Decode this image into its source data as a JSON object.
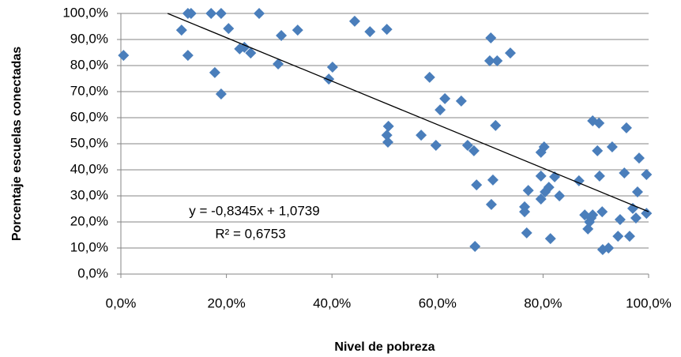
{
  "chart_data": {
    "type": "scatter",
    "x_label": "Nivel de pobreza",
    "y_label": "Porcentaje escuelas conectadas",
    "color": "#4a7ebb",
    "x": [
      0.005,
      0.115,
      0.127,
      0.133,
      0.127,
      0.171,
      0.19,
      0.178,
      0.19,
      0.204,
      0.225,
      0.234,
      0.246,
      0.262,
      0.298,
      0.304,
      0.335,
      0.394,
      0.401,
      0.443,
      0.472,
      0.504,
      0.504,
      0.506,
      0.507,
      0.569,
      0.597,
      0.585,
      0.605,
      0.614,
      0.645,
      0.657,
      0.669,
      0.674,
      0.671,
      0.701,
      0.699,
      0.713,
      0.738,
      0.71,
      0.705,
      0.702,
      0.769,
      0.765,
      0.765,
      0.772,
      0.814,
      0.796,
      0.796,
      0.796,
      0.802,
      0.804,
      0.811,
      0.822,
      0.831,
      0.868,
      0.879,
      0.885,
      0.888,
      0.891,
      0.894,
      0.894,
      0.906,
      0.903,
      0.907,
      0.912,
      0.913,
      0.924,
      0.931,
      0.942,
      0.946,
      0.954,
      0.958,
      0.964,
      0.97,
      0.976,
      0.979,
      0.982,
      0.996,
      0.996
    ],
    "values": [
      0.839,
      0.936,
      1.0,
      1.0,
      0.839,
      1.0,
      1.0,
      0.773,
      0.691,
      0.942,
      0.864,
      0.87,
      0.848,
      1.0,
      0.806,
      0.915,
      0.936,
      0.748,
      0.794,
      0.97,
      0.93,
      0.939,
      0.533,
      0.506,
      0.567,
      0.533,
      0.494,
      0.755,
      0.63,
      0.673,
      0.664,
      0.494,
      0.473,
      0.342,
      0.106,
      0.906,
      0.818,
      0.818,
      0.848,
      0.57,
      0.361,
      0.267,
      0.158,
      0.258,
      0.239,
      0.321,
      0.136,
      0.467,
      0.376,
      0.288,
      0.488,
      0.315,
      0.333,
      0.373,
      0.3,
      0.358,
      0.227,
      0.173,
      0.2,
      0.215,
      0.227,
      0.588,
      0.579,
      0.473,
      0.376,
      0.239,
      0.094,
      0.1,
      0.488,
      0.145,
      0.209,
      0.388,
      0.561,
      0.145,
      0.252,
      0.215,
      0.315,
      0.445,
      0.382,
      0.233
    ],
    "trendline": {
      "slope": -0.8345,
      "intercept": 1.0739,
      "equation": "y = -0,8345x + 1,0739",
      "r2": "R² = 0,6753"
    },
    "xlim": [
      0,
      1
    ],
    "ylim": [
      0,
      1
    ],
    "xticks": [
      {
        "value": 0,
        "label": "0,0%"
      },
      {
        "value": 0.2,
        "label": "20,0%"
      },
      {
        "value": 0.4,
        "label": "40,0%"
      },
      {
        "value": 0.6,
        "label": "60,0%"
      },
      {
        "value": 0.8,
        "label": "80,0%"
      },
      {
        "value": 1,
        "label": "100,0%"
      }
    ],
    "yticks": [
      {
        "value": 0,
        "label": "0,0%"
      },
      {
        "value": 0.1,
        "label": "10,0%"
      },
      {
        "value": 0.2,
        "label": "20,0%"
      },
      {
        "value": 0.3,
        "label": "30,0%"
      },
      {
        "value": 0.4,
        "label": "40,0%"
      },
      {
        "value": 0.5,
        "label": "50,0%"
      },
      {
        "value": 0.6,
        "label": "60,0%"
      },
      {
        "value": 0.7,
        "label": "70,0%"
      },
      {
        "value": 0.8,
        "label": "80,0%"
      },
      {
        "value": 0.9,
        "label": "90,0%"
      },
      {
        "value": 1,
        "label": "100,0%"
      }
    ],
    "grid": true
  }
}
